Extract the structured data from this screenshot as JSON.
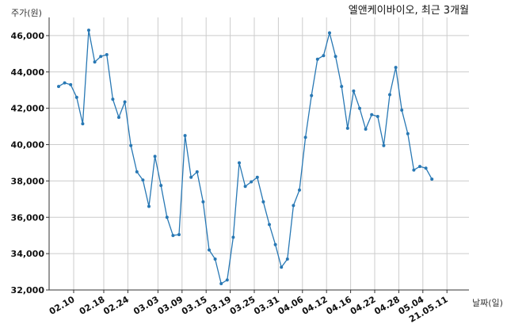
{
  "chart_data": {
    "type": "line",
    "title": "엘앤케이바이오, 최근 3개월",
    "xlabel": "날짜(일)",
    "ylabel": "주가(원)",
    "ylim": [
      32000,
      47000
    ],
    "yticks": [
      32000,
      34000,
      36000,
      38000,
      40000,
      42000,
      44000,
      46000
    ],
    "ytick_labels": [
      "32,000",
      "34,000",
      "36,000",
      "38,000",
      "40,000",
      "42,000",
      "44,000",
      "46,000"
    ],
    "xtick_labels": [
      "02.10",
      "02.18",
      "02.24",
      "03.03",
      "03.09",
      "03.15",
      "03.19",
      "03.25",
      "03.31",
      "04.06",
      "04.12",
      "04.16",
      "04.22",
      "04.28",
      "05.04",
      "21.05.11"
    ],
    "xtick_positions": [
      2.5,
      7.5,
      11.5,
      16.5,
      20.5,
      24.5,
      28.5,
      32.5,
      36.5,
      40.5,
      44.5,
      48.5,
      52.5,
      56.5,
      60.5,
      64.5
    ],
    "grid": true,
    "color": "#2878b4",
    "values": [
      43200,
      43400,
      43300,
      42600,
      41150,
      46300,
      44550,
      44850,
      44950,
      42500,
      41500,
      42350,
      39950,
      38500,
      38050,
      36600,
      39350,
      37750,
      36000,
      35000,
      35050,
      40500,
      38200,
      38500,
      36850,
      34200,
      33700,
      32350,
      32550,
      34900,
      39000,
      37700,
      37950,
      38200,
      36850,
      35600,
      34500,
      33250,
      33700,
      36650,
      37500,
      40400,
      42700,
      44700,
      44900,
      46150,
      44850,
      43200,
      40900,
      42950,
      42000,
      40850,
      41650,
      41550,
      39950,
      42750,
      44250,
      41900,
      40600,
      38600,
      38800,
      38700,
      38100
    ]
  }
}
